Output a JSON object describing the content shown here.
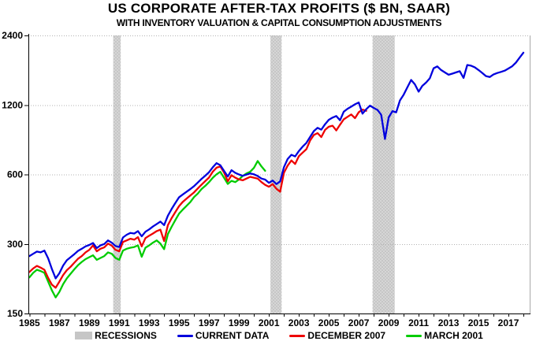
{
  "chart_data": {
    "type": "line",
    "title": "US CORPORATE AFTER-TAX PROFITS ($ BN, SAAR)",
    "subtitle": "WITH INVENTORY VALUATION & CAPITAL CONSUMPTION ADJUSTMENTS",
    "xlabel": "",
    "ylabel": "",
    "y_scale": "log2",
    "ylim": [
      150,
      2400
    ],
    "xlim": [
      1984.93,
      2018.42
    ],
    "y_ticks": [
      2400,
      1200,
      600,
      300,
      150
    ],
    "x_ticks": [
      1985,
      1987,
      1989,
      1991,
      1993,
      1995,
      1997,
      1999,
      2001,
      2003,
      2005,
      2007,
      2009,
      2011,
      2013,
      2015,
      2017
    ],
    "x_minor_tick_step": 1,
    "grid": "dotted-horizontal-at-y-ticks",
    "legend_position": "bottom",
    "axis_color": "#000000",
    "grid_color": "#b3b3b3",
    "right_border_color": "#a9a9a9",
    "recessions_label": "RECESSIONS",
    "recession_color": "#c6c6c6",
    "recessions": [
      [
        1990.6,
        1991.1
      ],
      [
        2001.1,
        2001.85
      ],
      [
        2007.92,
        2009.4
      ]
    ],
    "series": [
      {
        "name": "CURRENT DATA",
        "color": "#0000dd",
        "points": [
          [
            1985.0,
            266
          ],
          [
            1985.25,
            272
          ],
          [
            1985.5,
            278
          ],
          [
            1985.75,
            276
          ],
          [
            1986.0,
            281
          ],
          [
            1986.25,
            260
          ],
          [
            1986.5,
            234
          ],
          [
            1986.75,
            213
          ],
          [
            1987.0,
            224
          ],
          [
            1987.25,
            242
          ],
          [
            1987.5,
            255
          ],
          [
            1987.75,
            263
          ],
          [
            1988.0,
            271
          ],
          [
            1988.25,
            280
          ],
          [
            1988.5,
            286
          ],
          [
            1988.75,
            293
          ],
          [
            1989.0,
            297
          ],
          [
            1989.25,
            303
          ],
          [
            1989.5,
            288
          ],
          [
            1989.75,
            296
          ],
          [
            1990.0,
            300
          ],
          [
            1990.25,
            311
          ],
          [
            1990.5,
            304
          ],
          [
            1990.75,
            294
          ],
          [
            1991.0,
            291
          ],
          [
            1991.25,
            320
          ],
          [
            1991.5,
            329
          ],
          [
            1991.75,
            335
          ],
          [
            1992.0,
            333
          ],
          [
            1992.25,
            341
          ],
          [
            1992.5,
            324
          ],
          [
            1992.75,
            339
          ],
          [
            1993.0,
            347
          ],
          [
            1993.25,
            357
          ],
          [
            1993.5,
            366
          ],
          [
            1993.75,
            375
          ],
          [
            1994.0,
            362
          ],
          [
            1994.25,
            398
          ],
          [
            1994.5,
            425
          ],
          [
            1994.75,
            452
          ],
          [
            1995.0,
            478
          ],
          [
            1995.25,
            492
          ],
          [
            1995.5,
            505
          ],
          [
            1995.75,
            519
          ],
          [
            1996.0,
            534
          ],
          [
            1996.25,
            554
          ],
          [
            1996.5,
            574
          ],
          [
            1996.75,
            593
          ],
          [
            1997.0,
            614
          ],
          [
            1997.25,
            645
          ],
          [
            1997.5,
            672
          ],
          [
            1997.75,
            658
          ],
          [
            1998.0,
            622
          ],
          [
            1998.25,
            588
          ],
          [
            1998.5,
            626
          ],
          [
            1998.75,
            610
          ],
          [
            1999.0,
            600
          ],
          [
            1999.25,
            592
          ],
          [
            1999.5,
            599
          ],
          [
            1999.75,
            606
          ],
          [
            2000.0,
            601
          ],
          [
            2000.25,
            591
          ],
          [
            2000.5,
            576
          ],
          [
            2000.75,
            570
          ],
          [
            2001.0,
            552
          ],
          [
            2001.25,
            565
          ],
          [
            2001.5,
            545
          ],
          [
            2001.75,
            560
          ],
          [
            2002.0,
            645
          ],
          [
            2002.25,
            700
          ],
          [
            2002.5,
            730
          ],
          [
            2002.75,
            718
          ],
          [
            2003.0,
            758
          ],
          [
            2003.25,
            792
          ],
          [
            2003.5,
            822
          ],
          [
            2003.75,
            872
          ],
          [
            2004.0,
            925
          ],
          [
            2004.25,
            955
          ],
          [
            2004.5,
            938
          ],
          [
            2004.75,
            990
          ],
          [
            2005.0,
            1035
          ],
          [
            2005.25,
            1058
          ],
          [
            2005.5,
            1075
          ],
          [
            2005.75,
            1030
          ],
          [
            2006.0,
            1122
          ],
          [
            2006.25,
            1155
          ],
          [
            2006.5,
            1180
          ],
          [
            2006.75,
            1208
          ],
          [
            2007.0,
            1230
          ],
          [
            2007.25,
            1100
          ],
          [
            2007.5,
            1150
          ],
          [
            2007.75,
            1192
          ],
          [
            2008.0,
            1165
          ],
          [
            2008.25,
            1142
          ],
          [
            2008.5,
            1088
          ],
          [
            2008.75,
            855
          ],
          [
            2009.0,
            1060
          ],
          [
            2009.25,
            1128
          ],
          [
            2009.5,
            1115
          ],
          [
            2009.75,
            1255
          ],
          [
            2010.0,
            1330
          ],
          [
            2010.25,
            1430
          ],
          [
            2010.5,
            1540
          ],
          [
            2010.75,
            1475
          ],
          [
            2011.0,
            1370
          ],
          [
            2011.25,
            1452
          ],
          [
            2011.5,
            1500
          ],
          [
            2011.75,
            1565
          ],
          [
            2012.0,
            1730
          ],
          [
            2012.25,
            1762
          ],
          [
            2012.5,
            1700
          ],
          [
            2012.75,
            1660
          ],
          [
            2013.0,
            1622
          ],
          [
            2013.25,
            1640
          ],
          [
            2013.5,
            1660
          ],
          [
            2013.75,
            1680
          ],
          [
            2014.0,
            1572
          ],
          [
            2014.25,
            1788
          ],
          [
            2014.5,
            1775
          ],
          [
            2014.75,
            1748
          ],
          [
            2015.0,
            1700
          ],
          [
            2015.25,
            1652
          ],
          [
            2015.5,
            1600
          ],
          [
            2015.75,
            1585
          ],
          [
            2016.0,
            1625
          ],
          [
            2016.25,
            1650
          ],
          [
            2016.5,
            1668
          ],
          [
            2016.75,
            1690
          ],
          [
            2017.0,
            1725
          ],
          [
            2017.25,
            1765
          ],
          [
            2017.5,
            1830
          ],
          [
            2017.75,
            1925
          ],
          [
            2018.0,
            2020
          ]
        ]
      },
      {
        "name": "DECEMBER 2007",
        "color": "#ee0000",
        "points": [
          [
            1985.0,
            227
          ],
          [
            1985.25,
            235
          ],
          [
            1985.5,
            241
          ],
          [
            1985.75,
            237
          ],
          [
            1986.0,
            232
          ],
          [
            1986.25,
            214
          ],
          [
            1986.5,
            200
          ],
          [
            1986.75,
            194
          ],
          [
            1987.0,
            206
          ],
          [
            1987.25,
            220
          ],
          [
            1987.5,
            231
          ],
          [
            1987.75,
            239
          ],
          [
            1988.0,
            249
          ],
          [
            1988.25,
            259
          ],
          [
            1988.5,
            266
          ],
          [
            1988.75,
            276
          ],
          [
            1989.0,
            283
          ],
          [
            1989.25,
            296
          ],
          [
            1989.5,
            279
          ],
          [
            1989.75,
            286
          ],
          [
            1990.0,
            290
          ],
          [
            1990.25,
            301
          ],
          [
            1990.5,
            295
          ],
          [
            1990.75,
            283
          ],
          [
            1991.0,
            279
          ],
          [
            1991.25,
            306
          ],
          [
            1991.5,
            311
          ],
          [
            1991.75,
            316
          ],
          [
            1992.0,
            313
          ],
          [
            1992.25,
            321
          ],
          [
            1992.5,
            293
          ],
          [
            1992.75,
            318
          ],
          [
            1993.0,
            326
          ],
          [
            1993.25,
            333
          ],
          [
            1993.5,
            341
          ],
          [
            1993.75,
            346
          ],
          [
            1994.0,
            309
          ],
          [
            1994.25,
            362
          ],
          [
            1994.5,
            388
          ],
          [
            1994.75,
            413
          ],
          [
            1995.0,
            438
          ],
          [
            1995.25,
            457
          ],
          [
            1995.5,
            472
          ],
          [
            1995.75,
            487
          ],
          [
            1996.0,
            502
          ],
          [
            1996.25,
            522
          ],
          [
            1996.5,
            542
          ],
          [
            1996.75,
            562
          ],
          [
            1997.0,
            582
          ],
          [
            1997.25,
            617
          ],
          [
            1997.5,
            642
          ],
          [
            1997.75,
            650
          ],
          [
            1998.0,
            612
          ],
          [
            1998.25,
            561
          ],
          [
            1998.5,
            596
          ],
          [
            1998.75,
            581
          ],
          [
            1999.0,
            571
          ],
          [
            1999.25,
            566
          ],
          [
            1999.5,
            576
          ],
          [
            1999.75,
            586
          ],
          [
            2000.0,
            581
          ],
          [
            2000.25,
            576
          ],
          [
            2000.5,
            556
          ],
          [
            2000.75,
            541
          ],
          [
            2001.0,
            531
          ],
          [
            2001.25,
            545
          ],
          [
            2001.5,
            520
          ],
          [
            2001.75,
            505
          ],
          [
            2002.0,
            610
          ],
          [
            2002.25,
            655
          ],
          [
            2002.5,
            690
          ],
          [
            2002.75,
            666
          ],
          [
            2003.0,
            720
          ],
          [
            2003.25,
            746
          ],
          [
            2003.5,
            772
          ],
          [
            2003.75,
            842
          ],
          [
            2004.0,
            890
          ],
          [
            2004.25,
            906
          ],
          [
            2004.5,
            871
          ],
          [
            2004.75,
            936
          ],
          [
            2005.0,
            966
          ],
          [
            2005.25,
            976
          ],
          [
            2005.5,
            931
          ],
          [
            2005.75,
            986
          ],
          [
            2006.0,
            1040
          ],
          [
            2006.25,
            1066
          ],
          [
            2006.5,
            1092
          ],
          [
            2006.75,
            1052
          ],
          [
            2007.0,
            1116
          ],
          [
            2007.25,
            1146
          ],
          [
            2007.5,
            1132
          ]
        ]
      },
      {
        "name": "MARCH 2001",
        "color": "#00cc00",
        "points": [
          [
            1985.0,
            215
          ],
          [
            1985.25,
            225
          ],
          [
            1985.5,
            232
          ],
          [
            1985.75,
            229
          ],
          [
            1986.0,
            225
          ],
          [
            1986.25,
            206
          ],
          [
            1986.5,
            189
          ],
          [
            1986.75,
            176
          ],
          [
            1987.0,
            186
          ],
          [
            1987.25,
            201
          ],
          [
            1987.5,
            213
          ],
          [
            1987.75,
            223
          ],
          [
            1988.0,
            233
          ],
          [
            1988.25,
            243
          ],
          [
            1988.5,
            251
          ],
          [
            1988.75,
            258
          ],
          [
            1989.0,
            263
          ],
          [
            1989.25,
            268
          ],
          [
            1989.5,
            256
          ],
          [
            1989.75,
            261
          ],
          [
            1990.0,
            266
          ],
          [
            1990.25,
            276
          ],
          [
            1990.5,
            272
          ],
          [
            1990.75,
            261
          ],
          [
            1991.0,
            256
          ],
          [
            1991.25,
            281
          ],
          [
            1991.5,
            286
          ],
          [
            1991.75,
            289
          ],
          [
            1992.0,
            291
          ],
          [
            1992.25,
            296
          ],
          [
            1992.5,
            264
          ],
          [
            1992.75,
            289
          ],
          [
            1993.0,
            296
          ],
          [
            1993.25,
            304
          ],
          [
            1993.5,
            311
          ],
          [
            1993.75,
            301
          ],
          [
            1994.0,
            285
          ],
          [
            1994.25,
            331
          ],
          [
            1994.5,
            356
          ],
          [
            1994.75,
            381
          ],
          [
            1995.0,
            406
          ],
          [
            1995.25,
            423
          ],
          [
            1995.5,
            439
          ],
          [
            1995.75,
            456
          ],
          [
            1996.0,
            479
          ],
          [
            1996.25,
            496
          ],
          [
            1996.5,
            519
          ],
          [
            1996.75,
            536
          ],
          [
            1997.0,
            556
          ],
          [
            1997.25,
            581
          ],
          [
            1997.5,
            601
          ],
          [
            1997.75,
            616
          ],
          [
            1998.0,
            581
          ],
          [
            1998.25,
            546
          ],
          [
            1998.5,
            563
          ],
          [
            1998.75,
            556
          ],
          [
            1999.0,
            571
          ],
          [
            1999.25,
            591
          ],
          [
            1999.5,
            606
          ],
          [
            1999.75,
            616
          ],
          [
            2000.0,
            641
          ],
          [
            2000.25,
            686
          ],
          [
            2000.5,
            650
          ],
          [
            2000.75,
            622
          ]
        ]
      }
    ]
  }
}
